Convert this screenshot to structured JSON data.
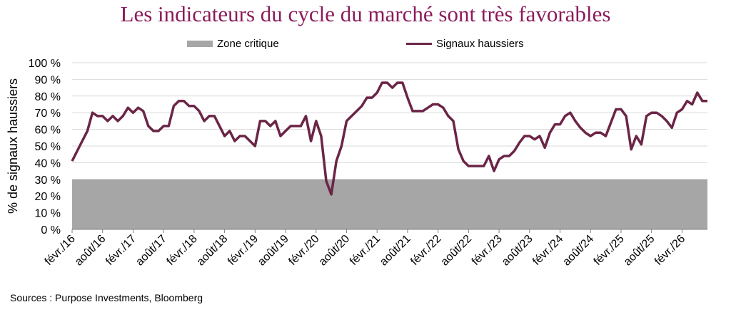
{
  "chart_data": {
    "type": "line",
    "title": "Les indicateurs du cycle du marché sont très favorables",
    "ylabel": "% de signaux haussiers",
    "xlabel": "",
    "ylim": [
      0,
      100
    ],
    "yticks": [
      "0 %",
      "10 %",
      "20 %",
      "30 %",
      "40 %",
      "50 %",
      "60 %",
      "70 %",
      "80 %",
      "90 %",
      "100 %"
    ],
    "xticks": [
      "févr./16",
      "août/16",
      "févr./17",
      "août/17",
      "févr./18",
      "août/18",
      "févr./19",
      "août/19",
      "févr./20",
      "août/20",
      "févr./21",
      "août/21",
      "févr./22",
      "août/22",
      "févr./23",
      "août/23",
      "févr./24",
      "août/24",
      "févr./25",
      "août/25",
      "févr./26"
    ],
    "legend_position": "top",
    "grid": true,
    "area_series": {
      "name": "Zone critique",
      "value": 30,
      "color": "#a6a6a6"
    },
    "series": [
      {
        "name": "Signaux haussiers",
        "color": "#6b2546",
        "values": [
          41,
          47,
          53,
          59,
          70,
          68,
          68,
          65,
          68,
          65,
          68,
          73,
          70,
          73,
          71,
          62,
          59,
          59,
          62,
          62,
          74,
          77,
          77,
          74,
          74,
          71,
          65,
          68,
          68,
          62,
          56,
          59,
          53,
          56,
          56,
          53,
          50,
          65,
          65,
          62,
          65,
          56,
          59,
          62,
          62,
          62,
          68,
          53,
          65,
          56,
          29,
          21,
          41,
          50,
          65,
          68,
          71,
          74,
          79,
          79,
          82,
          88,
          88,
          85,
          88,
          88,
          79,
          71,
          71,
          71,
          73,
          75,
          75,
          73,
          68,
          65,
          48,
          41,
          38,
          38,
          38,
          38,
          44,
          35,
          42,
          44,
          44,
          47,
          52,
          56,
          56,
          54,
          56,
          49,
          58,
          63,
          63,
          68,
          70,
          65,
          61,
          58,
          56,
          58,
          58,
          56,
          64,
          72,
          72,
          68,
          48,
          56,
          51,
          68,
          70,
          70,
          68,
          65,
          61,
          70,
          72,
          77,
          75,
          82,
          77,
          77
        ]
      }
    ]
  },
  "source": "Sources : Purpose Investments, Bloomberg"
}
